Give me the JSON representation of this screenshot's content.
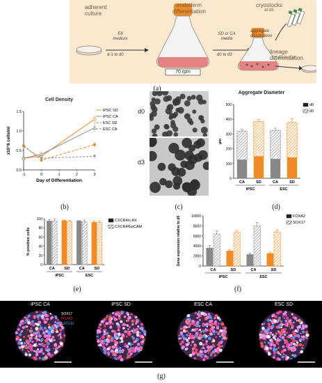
{
  "panel_a": {
    "label": "(a)",
    "stages": {
      "adherent": "adherent\nculture",
      "endoderm": "endoderm\ndifferentiation",
      "cryostocks": "cryostocks",
      "cryo_sub": "at d3",
      "medium_e8": "E8\nmedium",
      "day_range1": "d-1 to d0",
      "sd_ca": "SD or CA\nmedia",
      "day_range2": "d0 to d3",
      "aggregate": "aggregate\ndissociation",
      "lineage": "lineage\ndifferentiation",
      "lineage_days": "d3 to d14",
      "rpm": "70 rpm"
    }
  },
  "panel_b": {
    "label": "(b)",
    "chart_data": {
      "type": "line",
      "title": "Cell Density",
      "xlabel": "Day of Differentiation",
      "ylabel": "x10^6 cells/ml",
      "x": [
        -1,
        0,
        3
      ],
      "xticks": [
        "-1",
        "0",
        "1",
        "2",
        "3"
      ],
      "yticks": [
        "0.0",
        "0.5",
        "1.0",
        "1.5"
      ],
      "ylim": [
        0,
        1.5
      ],
      "series": [
        {
          "name": "iPSC SD",
          "color": "#f08a24",
          "dash": "none",
          "marker": "open-circle",
          "values": [
            0.3,
            0.35,
            1.3
          ],
          "err": [
            0.03,
            0.05,
            0.1
          ]
        },
        {
          "name": "iPSC CA",
          "color": "#888888",
          "dash": "none",
          "marker": "open-triangle",
          "values": [
            0.3,
            0.4,
            1.08
          ],
          "err": [
            0.03,
            0.05,
            0.12
          ]
        },
        {
          "name": "ESC SD",
          "color": "#f08a24",
          "dash": "4,2",
          "marker": "filled-square",
          "values": [
            0.62,
            0.25,
            0.65
          ],
          "err": [
            0.04,
            0.05,
            0.08
          ]
        },
        {
          "name": "ESC CA",
          "color": "#888888",
          "dash": "3,2",
          "marker": "filled-triangle-down",
          "values": [
            0.6,
            0.3,
            0.35
          ],
          "err": [
            0.04,
            0.05,
            0.05
          ]
        }
      ]
    }
  },
  "panel_c": {
    "label": "(c)",
    "row_labels": [
      "d0",
      "d3"
    ]
  },
  "panel_d": {
    "label": "(d)",
    "chart_data": {
      "type": "bar",
      "title": "Aggregate Diameter",
      "ylabel": "µm",
      "categories": [
        "CA",
        "SD",
        "CA",
        "SD"
      ],
      "groups": [
        "iPSC",
        "ESC"
      ],
      "ylim": [
        0,
        500
      ],
      "yticks": [
        "0",
        "100",
        "200",
        "300",
        "400",
        "500"
      ],
      "colors": [
        "#888888",
        "#f08a24",
        "#888888",
        "#f08a24"
      ],
      "series": [
        {
          "name": "d0",
          "values": [
            125,
            148,
            130,
            140
          ],
          "err": [
            15,
            15,
            15,
            15
          ]
        },
        {
          "name": "d3",
          "values": [
            320,
            385,
            325,
            378
          ],
          "err": [
            12,
            15,
            15,
            25
          ]
        }
      ]
    }
  },
  "panel_e": {
    "label": "(e)",
    "chart_data": {
      "type": "bar",
      "ylabel": "% positive cells",
      "categories": [
        "CA",
        "SD",
        "CA",
        "SD"
      ],
      "groups": [
        "iPSC",
        "ESC"
      ],
      "ylim": [
        0,
        100
      ],
      "yticks": [
        "0",
        "20",
        "40",
        "60",
        "80",
        "100"
      ],
      "colors": [
        "#888888",
        "#f08a24",
        "#888888",
        "#f08a24"
      ],
      "series": [
        {
          "name": "CXCR4/c-Kit",
          "values": [
            95,
            96,
            95,
            92
          ],
          "err": [
            3,
            1,
            1,
            3
          ]
        },
        {
          "name": "CXCR4/EpCAM",
          "values": [
            95,
            94,
            93,
            92
          ],
          "err": [
            4,
            2,
            4,
            3
          ]
        }
      ]
    }
  },
  "panel_f": {
    "label": "(f)",
    "chart_data": {
      "type": "bar",
      "ylabel": "Gene expression relative to d0",
      "categories": [
        "CA",
        "SD",
        "CA",
        "SD"
      ],
      "groups": [
        "iPSC",
        "ESC"
      ],
      "ylim": [
        0,
        10000
      ],
      "yticks": [
        "0",
        "2000",
        "4000",
        "6000",
        "8000",
        "10000"
      ],
      "colors": [
        "#888888",
        "#f08a24",
        "#888888",
        "#f08a24"
      ],
      "series": [
        {
          "name": "FOXA2",
          "values": [
            3600,
            3000,
            2300,
            2500
          ],
          "err": [
            500,
            300,
            300,
            300
          ]
        },
        {
          "name": "SOX17",
          "values": [
            6400,
            6700,
            8000,
            6800
          ],
          "err": [
            600,
            400,
            700,
            400
          ]
        }
      ]
    }
  },
  "panel_g": {
    "label": "(g)",
    "titles": [
      "iPSC CA",
      "iPSC SD",
      "ESC CA",
      "ESC SD"
    ],
    "legend": [
      "SOX17",
      "FOXA2",
      "NUCLEI"
    ],
    "legend_colors": [
      "#ffffff",
      "#ff2a2a",
      "#2ab0ff"
    ]
  }
}
